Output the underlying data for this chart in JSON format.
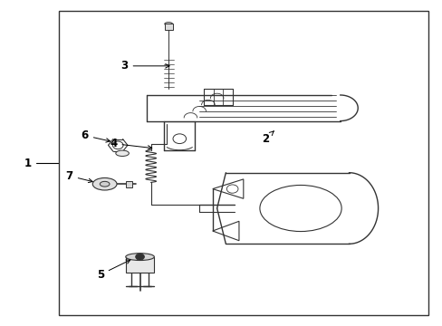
{
  "background_color": "#ffffff",
  "border_color": "#333333",
  "line_color": "#333333",
  "fig_width": 4.89,
  "fig_height": 3.6,
  "dpi": 100,
  "border": [
    0.13,
    0.03,
    0.97,
    0.97
  ]
}
